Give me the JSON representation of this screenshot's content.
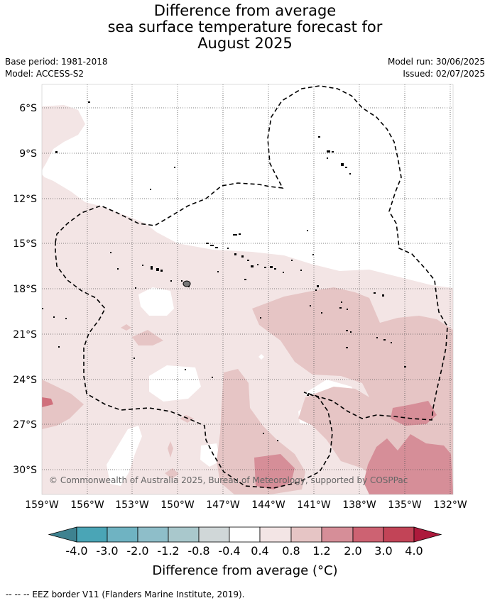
{
  "title": {
    "line1": "Difference from average",
    "line2": "sea surface temperature forecast for",
    "line3": "August 2025"
  },
  "meta": {
    "base_period": "Base period: 1981-2018",
    "model": "Model: ACCESS-S2",
    "model_run": "Model run: 30/06/2025",
    "issued": "Issued: 02/07/2025"
  },
  "map": {
    "lat_labels": [
      "6°S",
      "9°S",
      "12°S",
      "15°S",
      "18°S",
      "21°S",
      "24°S",
      "27°S",
      "30°S"
    ],
    "lon_labels": [
      "159°W",
      "156°W",
      "153°W",
      "150°W",
      "147°W",
      "144°W",
      "141°W",
      "138°W",
      "135°W",
      "132°W"
    ],
    "copyright": "© Commonwealth of Australia 2025, Bureau of Meteorology, supported by COSPPac",
    "colors": {
      "band_0_4_0_8": "#f3e5e5",
      "band_0_8_1_2": "#e6c5c5",
      "band_1_2_2_0": "#d68e98",
      "neutral": "#ffffff"
    }
  },
  "colorbar": {
    "title": "Difference from average (°C)",
    "labels": [
      "-4.0",
      "-3.0",
      "-2.0",
      "-1.2",
      "-0.8",
      "-0.4",
      "0.4",
      "0.8",
      "1.2",
      "2.0",
      "3.0",
      "4.0"
    ],
    "colors": [
      "#3e8290",
      "#4aa5b6",
      "#6fb3c2",
      "#8ebec9",
      "#a9c8cc",
      "#d0d7d8",
      "#ffffff",
      "#f3e5e5",
      "#e6c5c5",
      "#d68e98",
      "#cd6272",
      "#c24457",
      "#ad1a3c"
    ]
  },
  "footnote": "--  --  -- EEZ border V11 (Flanders Marine Institute, 2019)."
}
